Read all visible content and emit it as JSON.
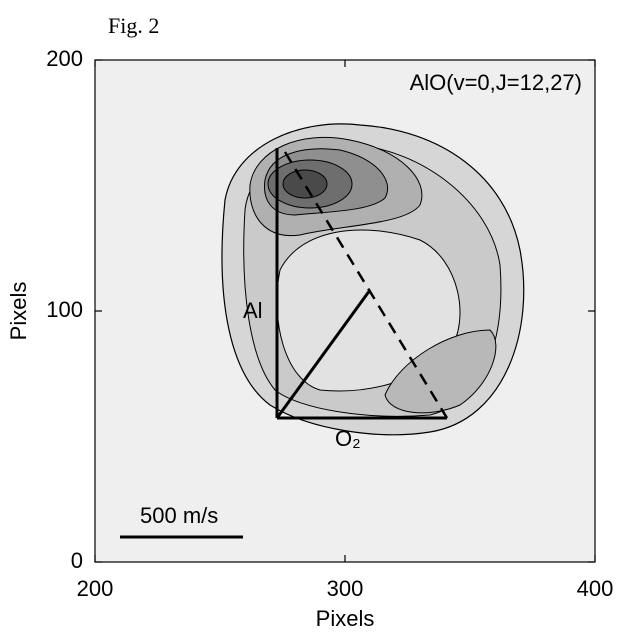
{
  "chart_data": {
    "type": "contour",
    "figure_label": "Fig. 2",
    "title": "AlO(v=0,J=12,27)",
    "xlabel": "Pixels",
    "ylabel": "Pixels",
    "xlim": [
      200,
      400
    ],
    "ylim": [
      0,
      200
    ],
    "xticks": [
      200,
      300,
      400
    ],
    "yticks": [
      0,
      100,
      200
    ],
    "annotations": [
      "Al",
      "O₂",
      "500 m/s"
    ]
  }
}
